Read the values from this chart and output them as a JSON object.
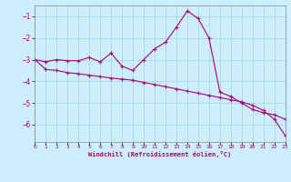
{
  "xlabel": "Windchill (Refroidissement éolien,°C)",
  "xlim": [
    0,
    23
  ],
  "ylim": [
    -6.8,
    -0.5
  ],
  "yticks": [
    -6,
    -5,
    -4,
    -3,
    -2,
    -1
  ],
  "xticks": [
    0,
    1,
    2,
    3,
    4,
    5,
    6,
    7,
    8,
    9,
    10,
    11,
    12,
    13,
    14,
    15,
    16,
    17,
    18,
    19,
    20,
    21,
    22,
    23
  ],
  "bg_color": "#cceeff",
  "line_color": "#aa0077",
  "curve1_x": [
    0,
    1,
    2,
    3,
    4,
    5,
    6,
    7,
    8,
    9,
    10,
    11,
    12,
    13,
    14,
    15,
    16,
    17,
    18,
    19,
    20,
    21,
    22,
    23
  ],
  "curve1_y": [
    -3.0,
    -3.1,
    -3.0,
    -3.05,
    -3.05,
    -2.9,
    -3.1,
    -2.7,
    -3.3,
    -3.5,
    -3.0,
    -2.5,
    -2.2,
    -1.5,
    -0.75,
    -1.1,
    -2.0,
    -4.5,
    -4.7,
    -5.0,
    -5.3,
    -5.45,
    -5.55,
    -5.75
  ],
  "curve2_x": [
    0,
    1,
    2,
    3,
    4,
    5,
    6,
    7,
    8,
    9,
    10,
    11,
    12,
    13,
    14,
    15,
    16,
    17,
    18,
    19,
    20,
    21,
    22,
    23
  ],
  "curve2_y": [
    -3.0,
    -3.45,
    -3.5,
    -3.6,
    -3.65,
    -3.72,
    -3.78,
    -3.85,
    -3.9,
    -3.95,
    -4.05,
    -4.15,
    -4.25,
    -4.35,
    -4.45,
    -4.55,
    -4.65,
    -4.75,
    -4.85,
    -4.95,
    -5.1,
    -5.35,
    -5.75,
    -6.5
  ]
}
